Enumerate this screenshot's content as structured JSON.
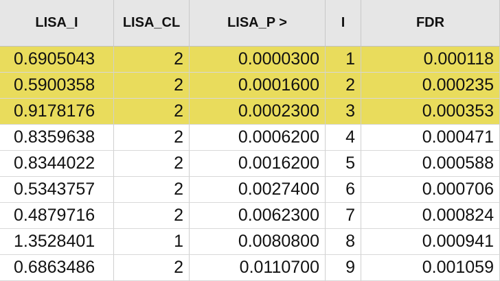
{
  "columns": [
    "LISA_I",
    "LISA_CL",
    "LISA_P >",
    "I",
    "FDR"
  ],
  "highlight_color": "#e9dc5c",
  "rows": [
    {
      "lisa_i": "0.6905043",
      "lisa_cl": "2",
      "lisa_p": "0.0000300",
      "i": "1",
      "fdr": "0.000118",
      "selected": true
    },
    {
      "lisa_i": "0.5900358",
      "lisa_cl": "2",
      "lisa_p": "0.0001600",
      "i": "2",
      "fdr": "0.000235",
      "selected": true
    },
    {
      "lisa_i": "0.9178176",
      "lisa_cl": "2",
      "lisa_p": "0.0002300",
      "i": "3",
      "fdr": "0.000353",
      "selected": true
    },
    {
      "lisa_i": "0.8359638",
      "lisa_cl": "2",
      "lisa_p": "0.0006200",
      "i": "4",
      "fdr": "0.000471",
      "selected": false
    },
    {
      "lisa_i": "0.8344022",
      "lisa_cl": "2",
      "lisa_p": "0.0016200",
      "i": "5",
      "fdr": "0.000588",
      "selected": false
    },
    {
      "lisa_i": "0.5343757",
      "lisa_cl": "2",
      "lisa_p": "0.0027400",
      "i": "6",
      "fdr": "0.000706",
      "selected": false
    },
    {
      "lisa_i": "0.4879716",
      "lisa_cl": "2",
      "lisa_p": "0.0062300",
      "i": "7",
      "fdr": "0.000824",
      "selected": false
    },
    {
      "lisa_i": "1.3528401",
      "lisa_cl": "1",
      "lisa_p": "0.0080800",
      "i": "8",
      "fdr": "0.000941",
      "selected": false
    },
    {
      "lisa_i": "0.6863486",
      "lisa_cl": "2",
      "lisa_p": "0.0110700",
      "i": "9",
      "fdr": "0.001059",
      "selected": false
    }
  ]
}
